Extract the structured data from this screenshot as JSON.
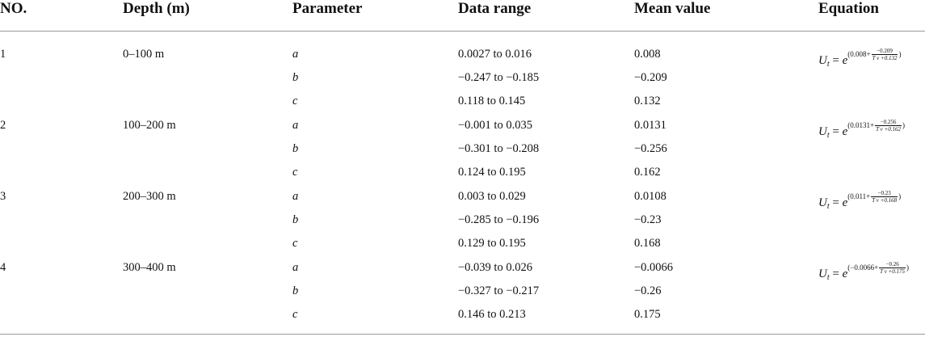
{
  "table": {
    "headers": {
      "no": "NO.",
      "depth": "Depth (m)",
      "parameter": "Parameter",
      "range": "Data range",
      "mean": "Mean value",
      "equation": "Equation"
    },
    "groups": [
      {
        "no": "1",
        "depth": "0–100 m",
        "rows": [
          {
            "param": "a",
            "range": "0.0027 to 0.016",
            "mean": "0.008"
          },
          {
            "param": "b",
            "range": "−0.247 to −0.185",
            "mean": "−0.209"
          },
          {
            "param": "c",
            "range": "0.118 to 0.145",
            "mean": "0.132"
          }
        ],
        "eq": {
          "lhs": "U",
          "sub": "t",
          "eq": "=",
          "base": "e",
          "a": "(0.008+",
          "num": "−0.209",
          "den": "T v +0.132",
          "close": ")"
        }
      },
      {
        "no": "2",
        "depth": "100–200 m",
        "rows": [
          {
            "param": "a",
            "range": "−0.001 to 0.035",
            "mean": "0.0131"
          },
          {
            "param": "b",
            "range": "−0.301 to −0.208",
            "mean": "−0.256"
          },
          {
            "param": "c",
            "range": "0.124 to 0.195",
            "mean": "0.162"
          }
        ],
        "eq": {
          "lhs": "U",
          "sub": "t",
          "eq": "=",
          "base": "e",
          "a": "(0.0131+",
          "num": "−0.256",
          "den": "T v +0.162",
          "close": ")"
        }
      },
      {
        "no": "3",
        "depth": "200–300 m",
        "rows": [
          {
            "param": "a",
            "range": "0.003 to 0.029",
            "mean": "0.0108"
          },
          {
            "param": "b",
            "range": "−0.285 to −0.196",
            "mean": "−0.23"
          },
          {
            "param": "c",
            "range": "0.129 to 0.195",
            "mean": "0.168"
          }
        ],
        "eq": {
          "lhs": "U",
          "sub": "t",
          "eq": "=",
          "base": "e",
          "a": "(0.011+",
          "num": "−0.23",
          "den": "T v +0.168",
          "close": ")"
        }
      },
      {
        "no": "4",
        "depth": "300–400 m",
        "rows": [
          {
            "param": "a",
            "range": "−0.039 to 0.026",
            "mean": "−0.0066"
          },
          {
            "param": "b",
            "range": "−0.327 to −0.217",
            "mean": "−0.26"
          },
          {
            "param": "c",
            "range": "0.146 to 0.213",
            "mean": "0.175"
          }
        ],
        "eq": {
          "lhs": "U",
          "sub": "t",
          "eq": "=",
          "base": "e",
          "a": "(−0.0066+",
          "num": "−0.26",
          "den": "T v +0.175",
          "close": ")"
        }
      }
    ]
  }
}
